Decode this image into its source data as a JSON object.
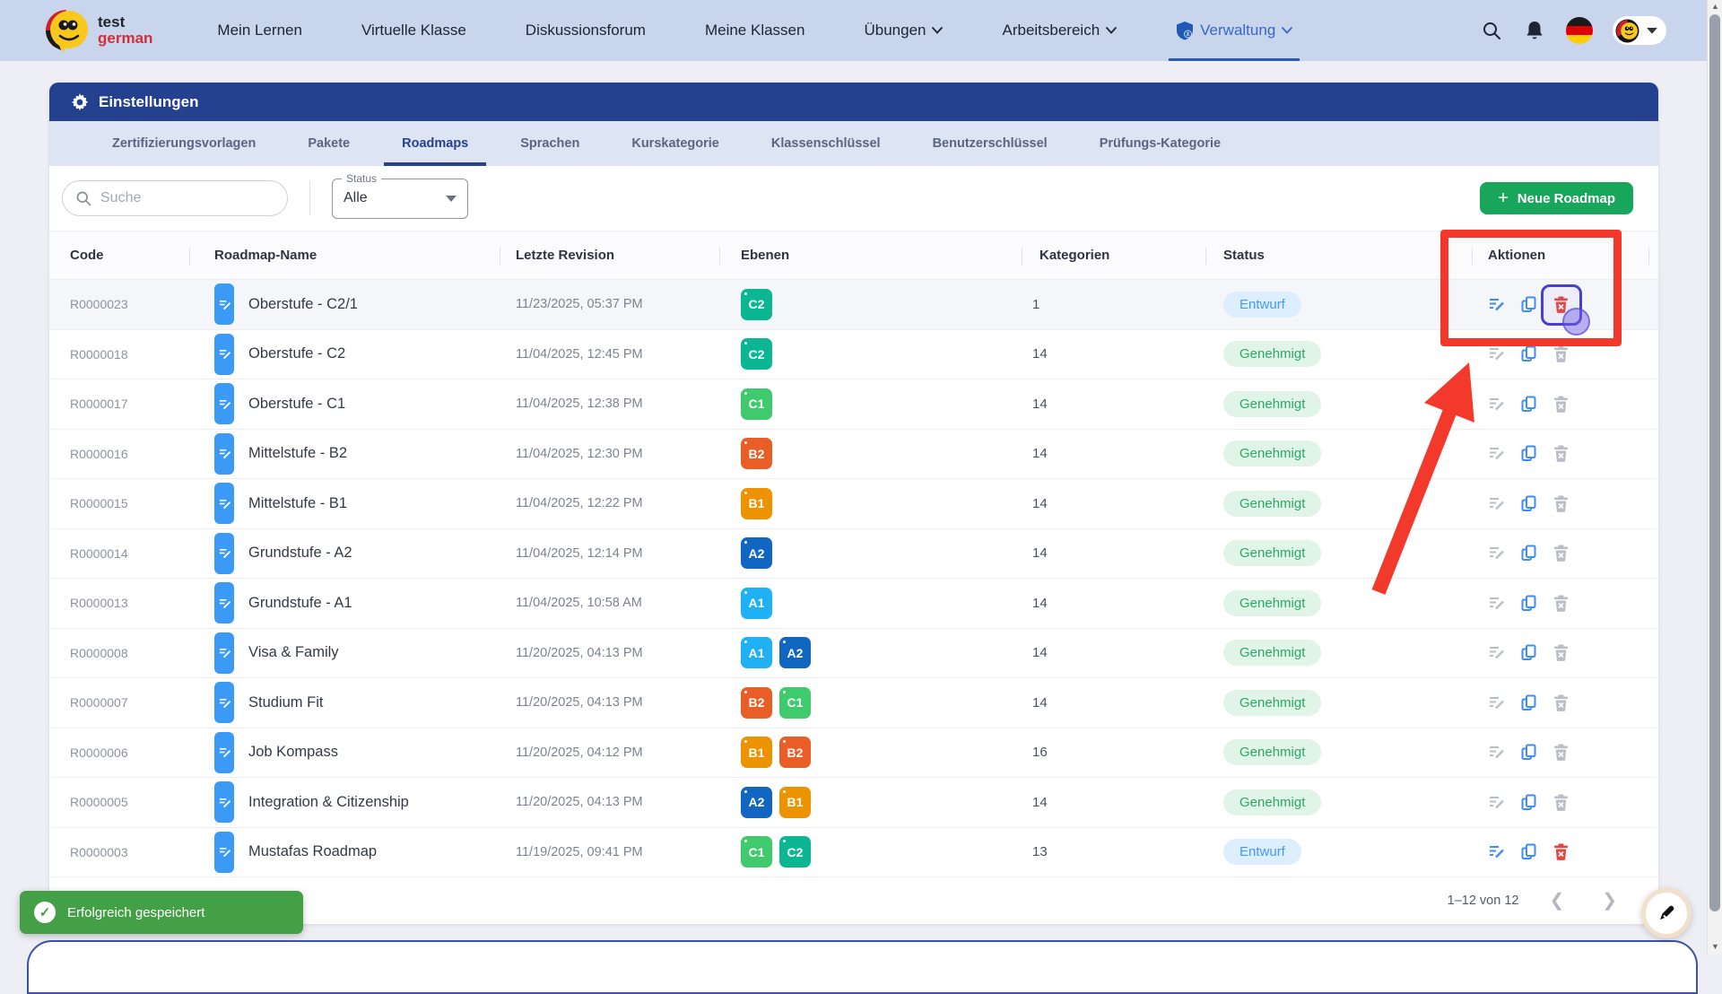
{
  "navbar": {
    "logo": {
      "line1": "test",
      "line2": "german"
    },
    "items": [
      {
        "label": "Mein Lernen",
        "caret": false,
        "active": false,
        "shield": false
      },
      {
        "label": "Virtuelle Klasse",
        "caret": false,
        "active": false,
        "shield": false
      },
      {
        "label": "Diskussionsforum",
        "caret": false,
        "active": false,
        "shield": false
      },
      {
        "label": "Meine Klassen",
        "caret": false,
        "active": false,
        "shield": false
      },
      {
        "label": "Übungen",
        "caret": true,
        "active": false,
        "shield": false
      },
      {
        "label": "Arbeitsbereich",
        "caret": true,
        "active": false,
        "shield": false
      },
      {
        "label": "Verwaltung",
        "caret": true,
        "active": true,
        "shield": true
      }
    ],
    "right_icons": [
      "search-icon",
      "bell-icon",
      "german-flag-icon",
      "avatar"
    ]
  },
  "settings": {
    "title": "Einstellungen",
    "icon": "gear-icon"
  },
  "tabs": [
    {
      "label": "Zertifizierungsvorlagen",
      "active": false
    },
    {
      "label": "Pakete",
      "active": false
    },
    {
      "label": "Roadmaps",
      "active": true
    },
    {
      "label": "Sprachen",
      "active": false
    },
    {
      "label": "Kurskategorie",
      "active": false
    },
    {
      "label": "Klassenschlüssel",
      "active": false
    },
    {
      "label": "Benutzerschlüssel",
      "active": false
    },
    {
      "label": "Prüfungs-Kategorie",
      "active": false
    }
  ],
  "filters": {
    "search_placeholder": "Suche",
    "status_label": "Status",
    "status_value": "Alle",
    "new_button": "Neue Roadmap"
  },
  "table": {
    "columns": [
      "Code",
      "Roadmap-Name",
      "Letzte Revision",
      "Ebenen",
      "Kategorien",
      "Status",
      "Aktionen"
    ],
    "rows": [
      {
        "code": "R0000023",
        "name": "Oberstufe - C2/1",
        "revision": "11/23/2025, 05:37 PM",
        "levels": [
          "C2"
        ],
        "kategorien": "1",
        "status": "Entwurf",
        "edit": "blue",
        "copy": "blue",
        "del": "red",
        "highlight": true
      },
      {
        "code": "R0000018",
        "name": "Oberstufe - C2",
        "revision": "11/04/2025, 12:45 PM",
        "levels": [
          "C2"
        ],
        "kategorien": "14",
        "status": "Genehmigt",
        "edit": "gray",
        "copy": "blue",
        "del": "gray",
        "highlight": false
      },
      {
        "code": "R0000017",
        "name": "Oberstufe - C1",
        "revision": "11/04/2025, 12:38 PM",
        "levels": [
          "C1"
        ],
        "kategorien": "14",
        "status": "Genehmigt",
        "edit": "gray",
        "copy": "blue",
        "del": "gray",
        "highlight": false
      },
      {
        "code": "R0000016",
        "name": "Mittelstufe - B2",
        "revision": "11/04/2025, 12:30 PM",
        "levels": [
          "B2"
        ],
        "kategorien": "14",
        "status": "Genehmigt",
        "edit": "gray",
        "copy": "blue",
        "del": "gray",
        "highlight": false
      },
      {
        "code": "R0000015",
        "name": "Mittelstufe - B1",
        "revision": "11/04/2025, 12:22 PM",
        "levels": [
          "B1"
        ],
        "kategorien": "14",
        "status": "Genehmigt",
        "edit": "gray",
        "copy": "blue",
        "del": "gray",
        "highlight": false
      },
      {
        "code": "R0000014",
        "name": "Grundstufe - A2",
        "revision": "11/04/2025, 12:14 PM",
        "levels": [
          "A2"
        ],
        "kategorien": "14",
        "status": "Genehmigt",
        "edit": "gray",
        "copy": "blue",
        "del": "gray",
        "highlight": false
      },
      {
        "code": "R0000013",
        "name": "Grundstufe - A1",
        "revision": "11/04/2025, 10:58 AM",
        "levels": [
          "A1"
        ],
        "kategorien": "14",
        "status": "Genehmigt",
        "edit": "gray",
        "copy": "blue",
        "del": "gray",
        "highlight": false
      },
      {
        "code": "R0000008",
        "name": "Visa & Family",
        "revision": "11/20/2025, 04:13 PM",
        "levels": [
          "A1",
          "A2"
        ],
        "kategorien": "14",
        "status": "Genehmigt",
        "edit": "gray",
        "copy": "blue",
        "del": "gray",
        "highlight": false
      },
      {
        "code": "R0000007",
        "name": "Studium Fit",
        "revision": "11/20/2025, 04:13 PM",
        "levels": [
          "B2",
          "C1"
        ],
        "kategorien": "14",
        "status": "Genehmigt",
        "edit": "gray",
        "copy": "blue",
        "del": "gray",
        "highlight": false
      },
      {
        "code": "R0000006",
        "name": "Job Kompass",
        "revision": "11/20/2025, 04:12 PM",
        "levels": [
          "B1",
          "B2"
        ],
        "kategorien": "16",
        "status": "Genehmigt",
        "edit": "gray",
        "copy": "blue",
        "del": "gray",
        "highlight": false
      },
      {
        "code": "R0000005",
        "name": "Integration & Citizenship",
        "revision": "11/20/2025, 04:13 PM",
        "levels": [
          "A2",
          "B1"
        ],
        "kategorien": "14",
        "status": "Genehmigt",
        "edit": "gray",
        "copy": "blue",
        "del": "gray",
        "highlight": false
      },
      {
        "code": "R0000003",
        "name": "Mustafas Roadmap",
        "revision": "11/19/2025, 09:41 PM",
        "levels": [
          "C1",
          "C2"
        ],
        "kategorien": "13",
        "status": "Entwurf",
        "edit": "blue",
        "copy": "blue",
        "del": "red",
        "highlight": false
      }
    ]
  },
  "level_colors": {
    "A1": "#1fb1f4",
    "A2": "#1166c2",
    "B1": "#ee9300",
    "B2": "#e95e27",
    "C1": "#3fca6e",
    "C2": "#0bb793"
  },
  "status_colors": {
    "Entwurf": {
      "bg": "#ddeefe",
      "text": "#4599f6"
    },
    "Genehmigt": {
      "bg": "#e1f4e8",
      "text": "#2aa864"
    }
  },
  "action_colors": {
    "blue": "#3f8cf3",
    "gray": "#b9bdc6",
    "red": "#e8453c"
  },
  "pagination": {
    "range": "1–12 von 12"
  },
  "toast": {
    "message": "Erfolgreich gespeichert"
  },
  "annotation_colors": {
    "red_box": "#f2382a",
    "arrow": "#f3392b",
    "focus_ring": "#4a3fd0"
  }
}
